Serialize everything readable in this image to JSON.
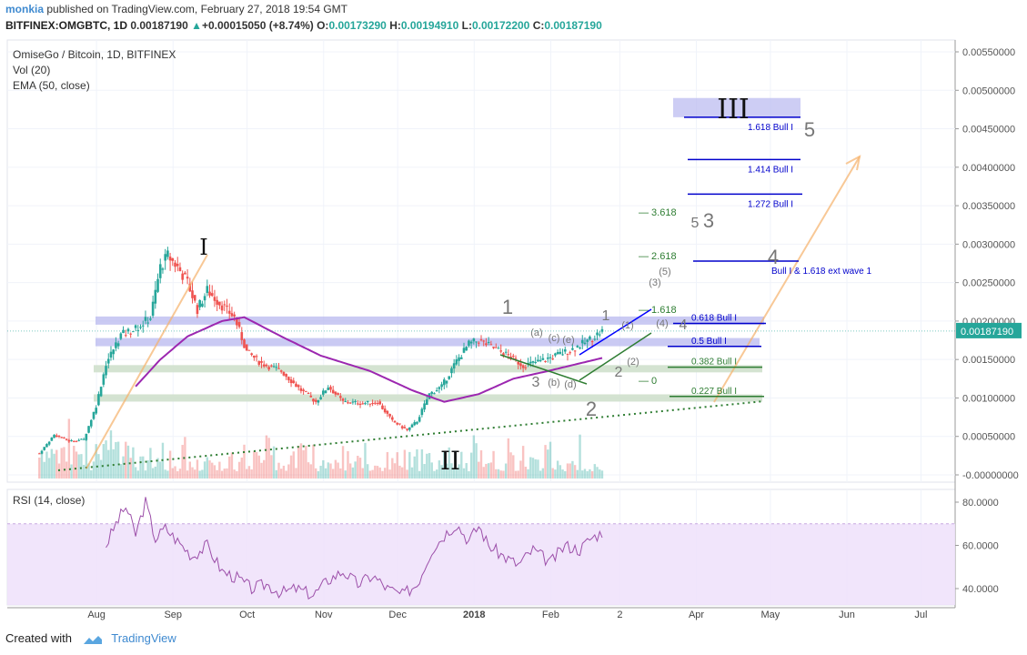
{
  "header": {
    "user": "monkia",
    "published": "published on TradingView.com, February 27, 2018 19:54 GMT",
    "symbol": "BITFINEX:OMGBTC, 1D",
    "last": "0.00187190",
    "change_arrow": "▲",
    "change": "+0.00015050 (+8.74%)",
    "o_label": "O:",
    "o": "0.00173290",
    "h_label": "H:",
    "h": "0.00194910",
    "l_label": "L:",
    "l": "0.00172200",
    "c_label": "C:",
    "c": "0.00187190"
  },
  "legend": {
    "title": "OmiseGo / Bitcoin, 1D, BITFINEX",
    "vol": "Vol (20)",
    "ema": "EMA (50, close)",
    "rsi": "RSI (14, close)"
  },
  "footer": {
    "created": "Created with",
    "brand": "TradingView"
  },
  "colors": {
    "up": "#26a69a",
    "down": "#ef5350",
    "ema": "#9c27b0",
    "rsi": "#9c4fa9",
    "rsi_band": "#efe0fa",
    "zone_blue": "#b8b8ef",
    "zone_green": "#cfe0cc",
    "blue_line": "#0000cc",
    "green_line": "#2e7d32",
    "orange": "#f6b26b",
    "last_price_bg": "#26a69a"
  },
  "chart_data": [
    {
      "type": "candlestick",
      "title": "OmiseGo / Bitcoin, 1D, BITFINEX",
      "x_ticks": [
        "Aug",
        "Sep",
        "Oct",
        "Nov",
        "Dec",
        "2018",
        "Feb",
        "2",
        "Apr",
        "May",
        "Jun",
        "Jul"
      ],
      "y_ticks": [
        "0.00550000",
        "0.00500000",
        "0.00450000",
        "0.00400000",
        "0.00350000",
        "0.00300000",
        "0.00250000",
        "0.00200000",
        "0.00150000",
        "0.00100000",
        "0.00050000",
        "-0.00000000"
      ],
      "ylim": [
        0,
        0.0055
      ],
      "last_price_label": "0.00187190",
      "series_anchor": [
        [
          "2017-07-14",
          0.00028
        ],
        [
          "2017-07-20",
          0.00052
        ],
        [
          "2017-07-26",
          0.00044
        ],
        [
          "2017-08-01",
          0.00046
        ],
        [
          "2017-08-06",
          0.0009
        ],
        [
          "2017-08-10",
          0.00145
        ],
        [
          "2017-08-16",
          0.00182
        ],
        [
          "2017-08-22",
          0.0019
        ],
        [
          "2017-08-28",
          0.00205
        ],
        [
          "2017-09-01",
          0.0027
        ],
        [
          "2017-09-04",
          0.00285
        ],
        [
          "2017-09-08",
          0.0027
        ],
        [
          "2017-09-12",
          0.0025
        ],
        [
          "2017-09-16",
          0.00215
        ],
        [
          "2017-09-20",
          0.0024
        ],
        [
          "2017-09-26",
          0.0022
        ],
        [
          "2017-10-01",
          0.00205
        ],
        [
          "2017-10-06",
          0.0016
        ],
        [
          "2017-10-12",
          0.00145
        ],
        [
          "2017-10-20",
          0.00135
        ],
        [
          "2017-10-28",
          0.0011
        ],
        [
          "2017-11-03",
          0.00095
        ],
        [
          "2017-11-08",
          0.00115
        ],
        [
          "2017-11-14",
          0.00095
        ],
        [
          "2017-11-22",
          0.00093
        ],
        [
          "2017-11-28",
          0.00095
        ],
        [
          "2017-12-04",
          0.0007
        ],
        [
          "2017-12-10",
          0.00058
        ],
        [
          "2017-12-14",
          0.0007
        ],
        [
          "2017-12-19",
          0.00105
        ],
        [
          "2017-12-24",
          0.00115
        ],
        [
          "2017-12-30",
          0.00148
        ],
        [
          "2018-01-04",
          0.0017
        ],
        [
          "2018-01-08",
          0.00175
        ],
        [
          "2018-01-14",
          0.00165
        ],
        [
          "2018-01-20",
          0.00155
        ],
        [
          "2018-01-26",
          0.00142
        ],
        [
          "2018-02-02",
          0.00148
        ],
        [
          "2018-02-08",
          0.00155
        ],
        [
          "2018-02-14",
          0.00162
        ],
        [
          "2018-02-20",
          0.00172
        ],
        [
          "2018-02-27",
          0.00187
        ]
      ],
      "ema_anchor": [
        [
          "2017-08-22",
          0.00115
        ],
        [
          "2017-09-01",
          0.0015
        ],
        [
          "2017-09-12",
          0.0018
        ],
        [
          "2017-09-26",
          0.002
        ],
        [
          "2017-10-05",
          0.00205
        ],
        [
          "2017-10-20",
          0.0018
        ],
        [
          "2017-11-05",
          0.00155
        ],
        [
          "2017-11-25",
          0.00135
        ],
        [
          "2017-12-12",
          0.0011
        ],
        [
          "2017-12-25",
          0.00095
        ],
        [
          "2018-01-08",
          0.00105
        ],
        [
          "2018-01-22",
          0.00125
        ],
        [
          "2018-02-05",
          0.00135
        ],
        [
          "2018-02-27",
          0.00152
        ]
      ],
      "fib_lines": [
        {
          "label": "1.618 Bull I",
          "value": 0.00465
        },
        {
          "label": "1.414 Bull I",
          "value": 0.0041
        },
        {
          "label": "1.272 Bull I",
          "value": 0.00365
        },
        {
          "label": "Bull I & 1.618 ext wave 1",
          "value": 0.00278
        },
        {
          "label": "0.618 Bull I",
          "value": 0.00197
        },
        {
          "label": "0.5 Bull I",
          "value": 0.00167
        },
        {
          "label": "0.382 Bull I",
          "value": 0.0014
        },
        {
          "label": "0.227 Bull I",
          "value": 0.00102
        }
      ],
      "ext_labels": [
        {
          "label": "3.618",
          "value": 0.00342
        },
        {
          "label": "2.618",
          "value": 0.00285
        },
        {
          "label": "1.618",
          "value": 0.00215
        },
        {
          "label": "0",
          "value": 0.00123
        }
      ],
      "wave_labels": [
        "I",
        "II",
        "III",
        "1",
        "2",
        "3",
        "4",
        "5"
      ],
      "minor_wave_labels": [
        "(a)",
        "(c)",
        "(e)",
        "(b)",
        "(d)",
        "(1)",
        "(2)",
        "(3)",
        "(4)",
        "(5)",
        "1",
        "2",
        "3",
        "4",
        "5"
      ]
    },
    {
      "type": "line",
      "title": "RSI (14, close)",
      "y_ticks": [
        "80.0000",
        "60.0000",
        "40.0000"
      ],
      "ylim": [
        37,
        85
      ],
      "band": [
        30,
        70
      ],
      "values_anchor": [
        [
          "2017-08-10",
          60
        ],
        [
          "2017-08-14",
          70
        ],
        [
          "2017-08-18",
          78
        ],
        [
          "2017-08-22",
          65
        ],
        [
          "2017-08-26",
          80
        ],
        [
          "2017-08-30",
          63
        ],
        [
          "2017-09-03",
          68
        ],
        [
          "2017-09-08",
          62
        ],
        [
          "2017-09-14",
          55
        ],
        [
          "2017-09-20",
          60
        ],
        [
          "2017-09-26",
          48
        ],
        [
          "2017-10-02",
          45
        ],
        [
          "2017-10-08",
          40
        ],
        [
          "2017-10-14",
          42
        ],
        [
          "2017-10-20",
          38
        ],
        [
          "2017-10-26",
          40
        ],
        [
          "2017-11-02",
          37
        ],
        [
          "2017-11-08",
          44
        ],
        [
          "2017-11-14",
          48
        ],
        [
          "2017-11-20",
          42
        ],
        [
          "2017-11-26",
          46
        ],
        [
          "2017-12-02",
          40
        ],
        [
          "2017-12-08",
          37
        ],
        [
          "2017-12-14",
          42
        ],
        [
          "2017-12-20",
          58
        ],
        [
          "2017-12-26",
          66
        ],
        [
          "2017-12-30",
          70
        ],
        [
          "2018-01-04",
          62
        ],
        [
          "2018-01-08",
          69
        ],
        [
          "2018-01-12",
          60
        ],
        [
          "2018-01-18",
          55
        ],
        [
          "2018-01-24",
          51
        ],
        [
          "2018-01-30",
          58
        ],
        [
          "2018-02-06",
          52
        ],
        [
          "2018-02-12",
          60
        ],
        [
          "2018-02-18",
          58
        ],
        [
          "2018-02-22",
          63
        ],
        [
          "2018-02-27",
          66
        ]
      ]
    }
  ]
}
